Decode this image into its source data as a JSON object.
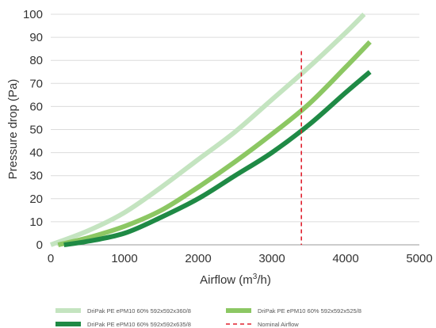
{
  "chart_data": {
    "type": "line",
    "xlabel": {
      "prefix": "Airflow (m",
      "sup": "3",
      "suffix": "/h)"
    },
    "ylabel": "Pressure drop (Pa)",
    "xlim": [
      0,
      5000
    ],
    "ylim": [
      0,
      100
    ],
    "xticks": [
      "0",
      "1000",
      "2000",
      "3000",
      "4000",
      "5000"
    ],
    "yticks": [
      "0",
      "10",
      "20",
      "30",
      "40",
      "50",
      "60",
      "70",
      "80",
      "90",
      "100"
    ],
    "grid": "horizontal",
    "legend_position": "bottom",
    "series": [
      {
        "name": "DriPak PE ePM10 60% 592x592x360/8",
        "color": "#c4e4c0",
        "x": [
          0,
          500,
          1000,
          1500,
          2000,
          2500,
          3000,
          3500,
          4000,
          4250
        ],
        "y": [
          0,
          6,
          14,
          25,
          37,
          49,
          63,
          77,
          92,
          100
        ]
      },
      {
        "name": "DriPak PE ePM10 60% 592x592x525/8",
        "color": "#8cc763",
        "x": [
          100,
          500,
          1000,
          1500,
          2000,
          2500,
          3000,
          3500,
          4000,
          4330
        ],
        "y": [
          0,
          3,
          8,
          15,
          25,
          36,
          48,
          61,
          77,
          88
        ]
      },
      {
        "name": "DriPak PE ePM10 60% 592x592x635/8",
        "color": "#1f8a45",
        "x": [
          180,
          500,
          1000,
          1500,
          2000,
          2500,
          3000,
          3500,
          4000,
          4330
        ],
        "y": [
          0,
          1.5,
          5,
          12,
          20,
          30,
          40,
          52,
          66,
          75
        ]
      }
    ],
    "reference_line": {
      "name": "Nominal Airflow",
      "color": "#e0202e",
      "x": 3400,
      "y_top": 84
    }
  }
}
